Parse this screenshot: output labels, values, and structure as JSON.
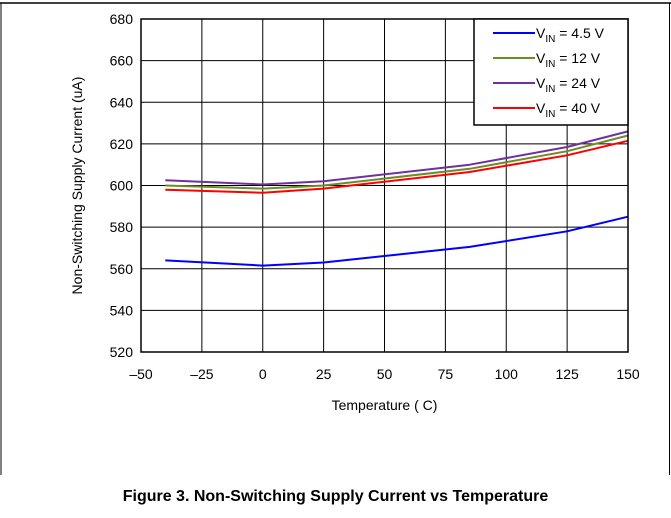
{
  "chart_data": {
    "type": "line",
    "xlabel": "Temperature ( C)",
    "ylabel": "Non-Switching Supply Current (uA)",
    "xlim": [
      -50,
      150
    ],
    "ylim": [
      520,
      680
    ],
    "xticks": [
      -50,
      -25,
      0,
      25,
      50,
      75,
      100,
      125,
      150
    ],
    "xtick_labels": [
      "–50",
      "–25",
      "0",
      "25",
      "50",
      "75",
      "100",
      "125",
      "150"
    ],
    "yticks": [
      520,
      540,
      560,
      580,
      600,
      620,
      640,
      660,
      680
    ],
    "grid": true,
    "legend_position": "top-right",
    "x": [
      -40,
      0,
      25,
      85,
      125,
      150
    ],
    "series": [
      {
        "name_main": "V",
        "name_sub": "IN",
        "name_rest": " = 4.5 V",
        "color": "#0000ff",
        "values": [
          564,
          561.5,
          563,
          570.5,
          578,
          585
        ]
      },
      {
        "name_main": "V",
        "name_sub": "IN",
        "name_rest": " = 12 V",
        "color": "#6b8e23",
        "values": [
          600,
          598.5,
          600,
          608,
          616.5,
          624
        ]
      },
      {
        "name_main": "V",
        "name_sub": "IN",
        "name_rest": " = 24 V",
        "color": "#7030a0",
        "values": [
          602.5,
          600.5,
          602,
          610,
          618.5,
          626
        ]
      },
      {
        "name_main": "V",
        "name_sub": "IN",
        "name_rest": " = 40 V",
        "color": "#ff0000",
        "values": [
          598,
          596.5,
          598.5,
          606.5,
          614.5,
          621.5
        ]
      }
    ]
  },
  "caption": "Figure 3. Non-Switching Supply Current vs Temperature"
}
